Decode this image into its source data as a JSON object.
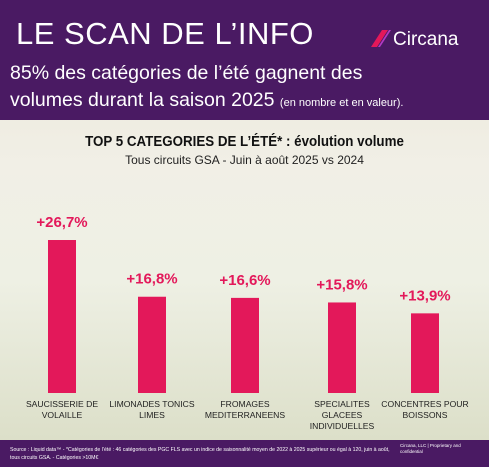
{
  "header": {
    "title": "LE SCAN DE L’INFO",
    "brand": "Circana",
    "subtitle_lines": [
      "85% des catégories de l’été gagnent des",
      "volumes durant la saison 2025"
    ],
    "subtitle_note": "(en nombre et en valeur)."
  },
  "chart_data": {
    "type": "bar",
    "title": "TOP 5 CATEGORIES DE L’ÉTÉ* : évolution volume",
    "subtitle": "Tous circuits GSA - Juin à août 2025 vs 2024",
    "categories": [
      "SAUCISSERIE DE VOLAILLE",
      "LIMONADES TONICS LIMES",
      "FROMAGES MEDITERRANEENS",
      "SPECIALITES GLACEES INDIVIDUELLES",
      "CONCENTRES POUR BOISSONS"
    ],
    "values": [
      26.7,
      16.8,
      16.6,
      15.8,
      13.9
    ],
    "value_labels": [
      "+26,7%",
      "+16,8%",
      "+16,6%",
      "+15,8%",
      "+13,9%"
    ],
    "color": "#e3185a"
  },
  "footer": {
    "source": "Source : Liquid data™ - *Catégories de l’été : 46 catégories des PGC FLS avec un indice de saisonnalité moyen de 2022 à 2025 supérieur ou égal à 120, juin à août, tous circuits GSA. - Catégories >10M€",
    "legal": "Circana, LLC | Proprietary and confidential"
  }
}
